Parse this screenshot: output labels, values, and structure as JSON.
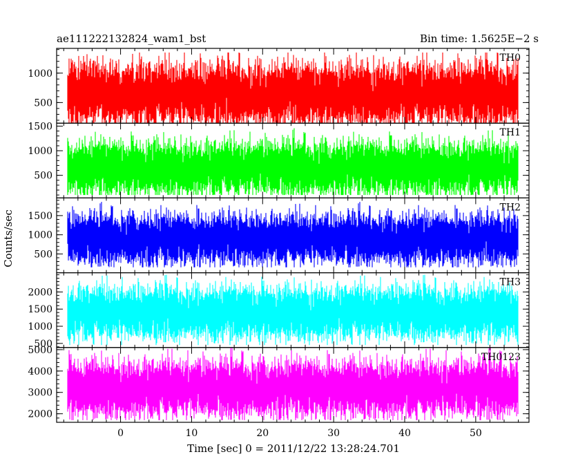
{
  "header": {
    "title_left": "ae111222132824_wam1_bst",
    "title_right": "Bin time: 1.5625E−2 s"
  },
  "chart_data": {
    "type": "line",
    "xlabel": "Time [sec] 0 = 2011/12/22 13:28:24.701",
    "ylabel": "Counts/sec",
    "xlim": [
      -9,
      57.5
    ],
    "data_range": [
      -7.5,
      56
    ],
    "bin_time": 0.015625,
    "xticks_major": [
      0,
      10,
      20,
      30,
      40,
      50
    ],
    "xticks_minor_step": 2,
    "grid": false,
    "panels": [
      {
        "name": "TH0",
        "color": "#ff0000",
        "ylim": [
          150,
          1420
        ],
        "yticks": [
          500,
          1000
        ],
        "yminor_step": 100,
        "baseline": 650,
        "amplitude": 260,
        "floor": 150,
        "ceiling": 1350
      },
      {
        "name": "TH1",
        "color": "#00ff00",
        "ylim": [
          40,
          1560
        ],
        "yticks": [
          500,
          1000,
          1500
        ],
        "yminor_step": 100,
        "baseline": 650,
        "amplitude": 270,
        "floor": 100,
        "ceiling": 1560
      },
      {
        "name": "TH2",
        "color": "#0000ff",
        "ylim": [
          10,
          1960
        ],
        "yticks": [
          500,
          1000,
          1500
        ],
        "yminor_step": 100,
        "baseline": 900,
        "amplitude": 320,
        "floor": 150,
        "ceiling": 1900
      },
      {
        "name": "TH3",
        "color": "#00ffff",
        "ylim": [
          380,
          2560
        ],
        "yticks": [
          500,
          1000,
          1500,
          2000
        ],
        "yminor_step": 100,
        "baseline": 1400,
        "amplitude": 380,
        "floor": 450,
        "ceiling": 2500
      },
      {
        "name": "TH0123",
        "color": "#ff00ff",
        "ylim": [
          1600,
          5100
        ],
        "yticks": [
          2000,
          3000,
          4000,
          5000
        ],
        "yminor_step": 200,
        "baseline": 3200,
        "amplitude": 650,
        "floor": 1700,
        "ceiling": 5100
      }
    ]
  }
}
